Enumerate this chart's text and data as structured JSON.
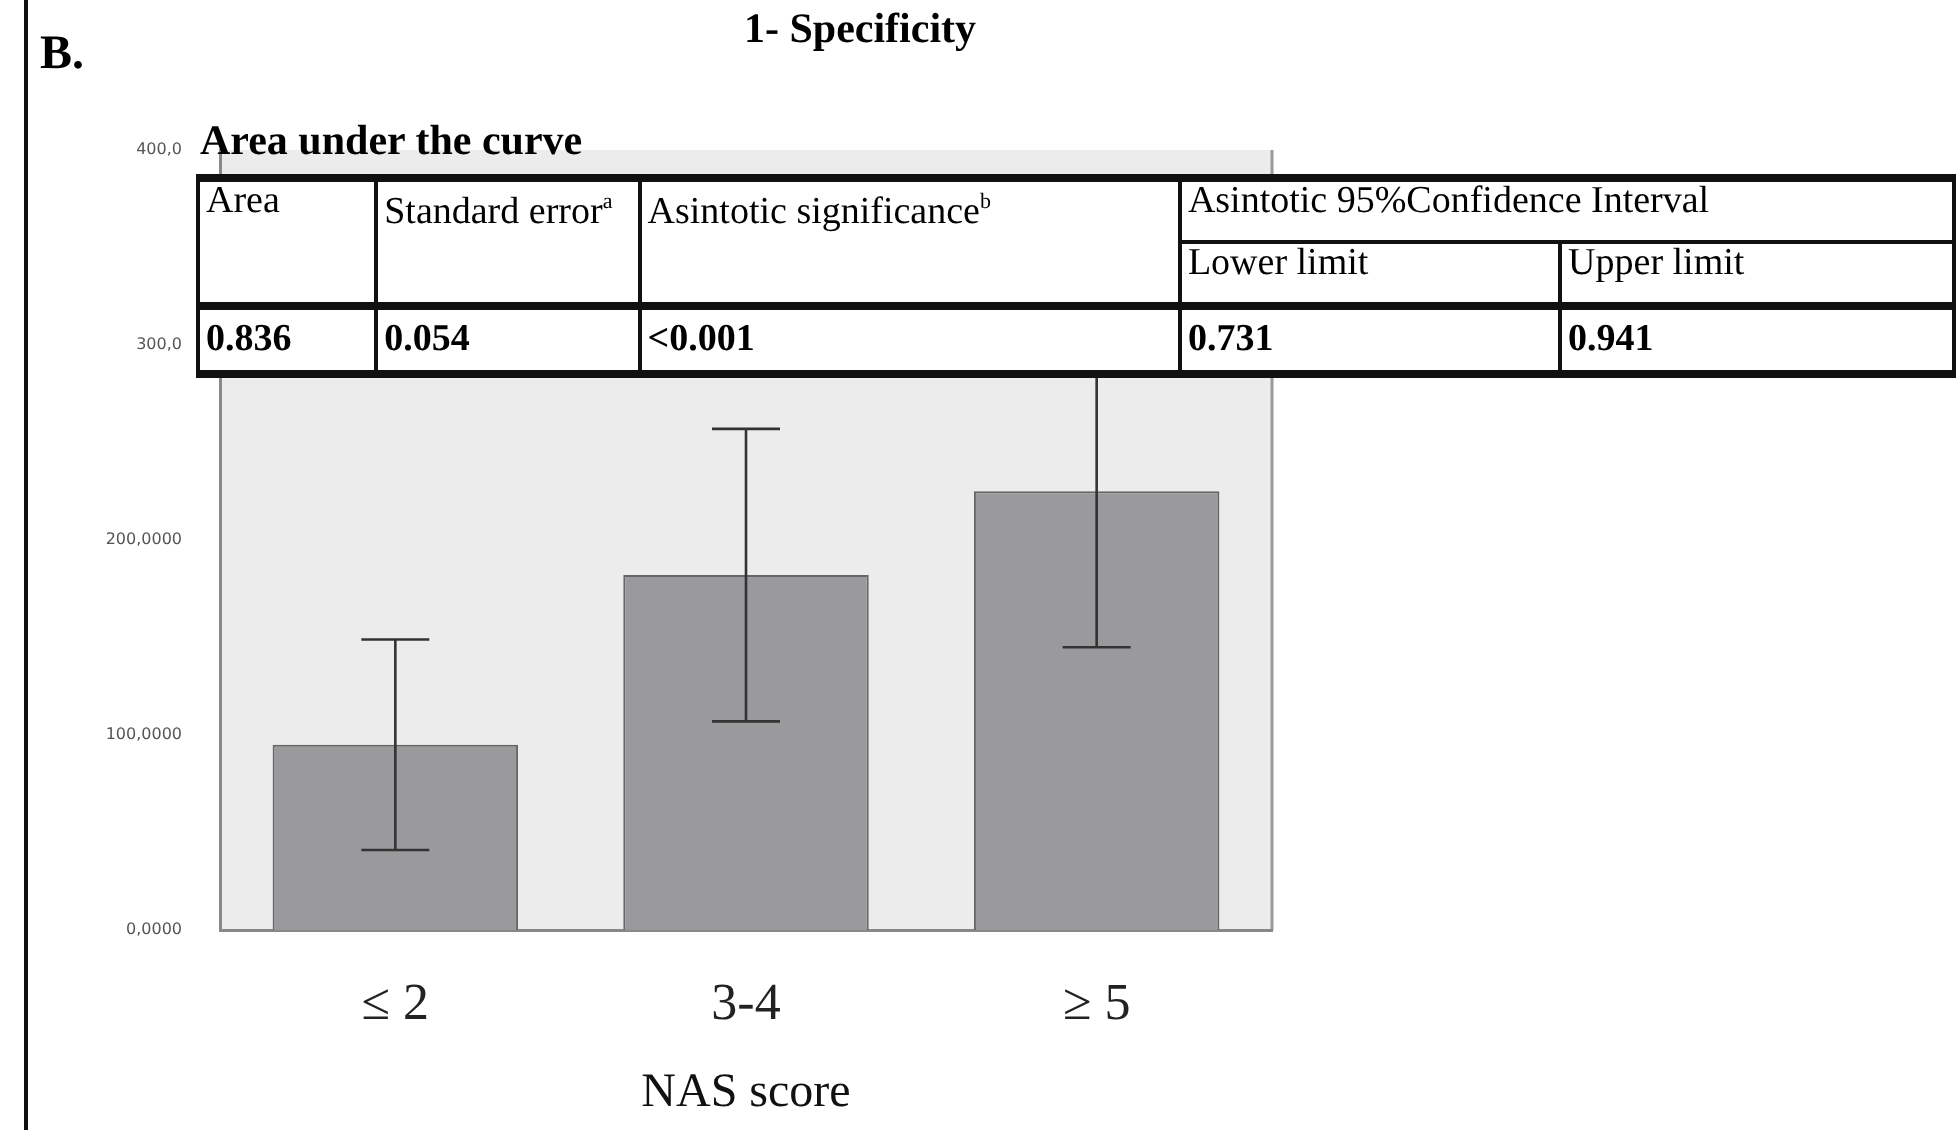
{
  "chart_data": {
    "type": "bar",
    "title": "1- Specificity",
    "xlabel": "NAS score",
    "categories": [
      "≤ 2",
      "3-4",
      "≥ 5"
    ],
    "values": [
      95,
      182,
      225
    ],
    "errors": [
      54,
      75,
      80
    ],
    "color": "#9a9a9c",
    "ylim": [
      0,
      400
    ],
    "yticks": [
      {
        "value": 0,
        "label": "0,0000"
      },
      {
        "value": 100,
        "label": "100,0000"
      },
      {
        "value": 200,
        "label": "200,0000"
      },
      {
        "value": 300,
        "label": "300,0"
      },
      {
        "value": 400,
        "label": "400,0"
      }
    ],
    "grid": false,
    "legend": false,
    "annotations": [
      "B.",
      "Area under the curve",
      "Area",
      "Standard error$^{a}$",
      "Asintotic significance$^{b}$",
      "Asintotic 95%Confidence Interval",
      "Lower limit",
      "Upper limit",
      "0.836",
      "0.054",
      "<0.001",
      "0.731",
      "0.941"
    ]
  }
}
